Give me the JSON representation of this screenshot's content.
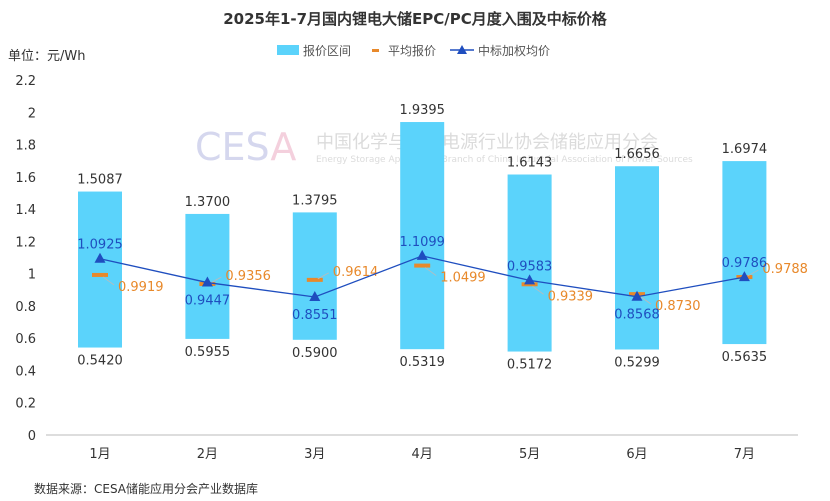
{
  "chart_data": {
    "type": "bar",
    "title": "2025年1-7月国内锂电大储EPC/PC月度入围及中标价格",
    "unit_label": "单位：元/Wh",
    "source": "数据来源：CESA储能应用分会产业数据库",
    "watermark": {
      "logo": "CESA",
      "cn": "中国化学与物理电源行业协会储能应用分会",
      "en": "Energy Storage Application Branch of China Industrial Association of Power Sources"
    },
    "categories": [
      "1月",
      "2月",
      "3月",
      "4月",
      "5月",
      "6月",
      "7月"
    ],
    "ylim": [
      0,
      2.2
    ],
    "yticks": [
      0,
      0.2,
      0.4,
      0.6,
      0.8,
      1,
      1.2,
      1.4,
      1.6,
      1.8,
      2,
      2.2
    ],
    "ytick_labels": [
      "0",
      "0.2",
      "0.4",
      "0.6",
      "0.8",
      "1",
      "1.2",
      "1.4",
      "1.6",
      "1.8",
      "2",
      "2.2"
    ],
    "grid": false,
    "legend_placement": "top",
    "series": [
      {
        "name": "报价区间",
        "type": "floating-bar",
        "color": "#5BD3FB",
        "low": [
          0.542,
          0.5955,
          0.59,
          0.5319,
          0.5172,
          0.5299,
          0.5635
        ],
        "high": [
          1.5087,
          1.37,
          1.3795,
          1.9395,
          1.6143,
          1.6656,
          1.6974
        ],
        "low_labels": [
          "0.5420",
          "0.5955",
          "0.5900",
          "0.5319",
          "0.5172",
          "0.5299",
          "0.5635"
        ],
        "high_labels": [
          "1.5087",
          "1.3700",
          "1.3795",
          "1.9395",
          "1.6143",
          "1.6656",
          "1.6974"
        ]
      },
      {
        "name": "平均报价",
        "type": "dash-marker",
        "color": "#E8892B",
        "values": [
          0.9919,
          0.9356,
          0.9614,
          1.0499,
          0.9339,
          0.873,
          0.9788
        ],
        "labels": [
          "0.9919",
          "0.9356",
          "0.9614",
          "1.0499",
          "0.9339",
          "0.8730",
          "0.9788"
        ]
      },
      {
        "name": "中标加权均价",
        "type": "line",
        "color": "#1F4EBF",
        "values": [
          1.0925,
          0.9447,
          0.8551,
          1.1099,
          0.9583,
          0.8568,
          0.9786
        ],
        "labels": [
          "1.0925",
          "0.9447",
          "0.8551",
          "1.1099",
          "0.9583",
          "0.8568",
          "0.9786"
        ]
      }
    ]
  }
}
